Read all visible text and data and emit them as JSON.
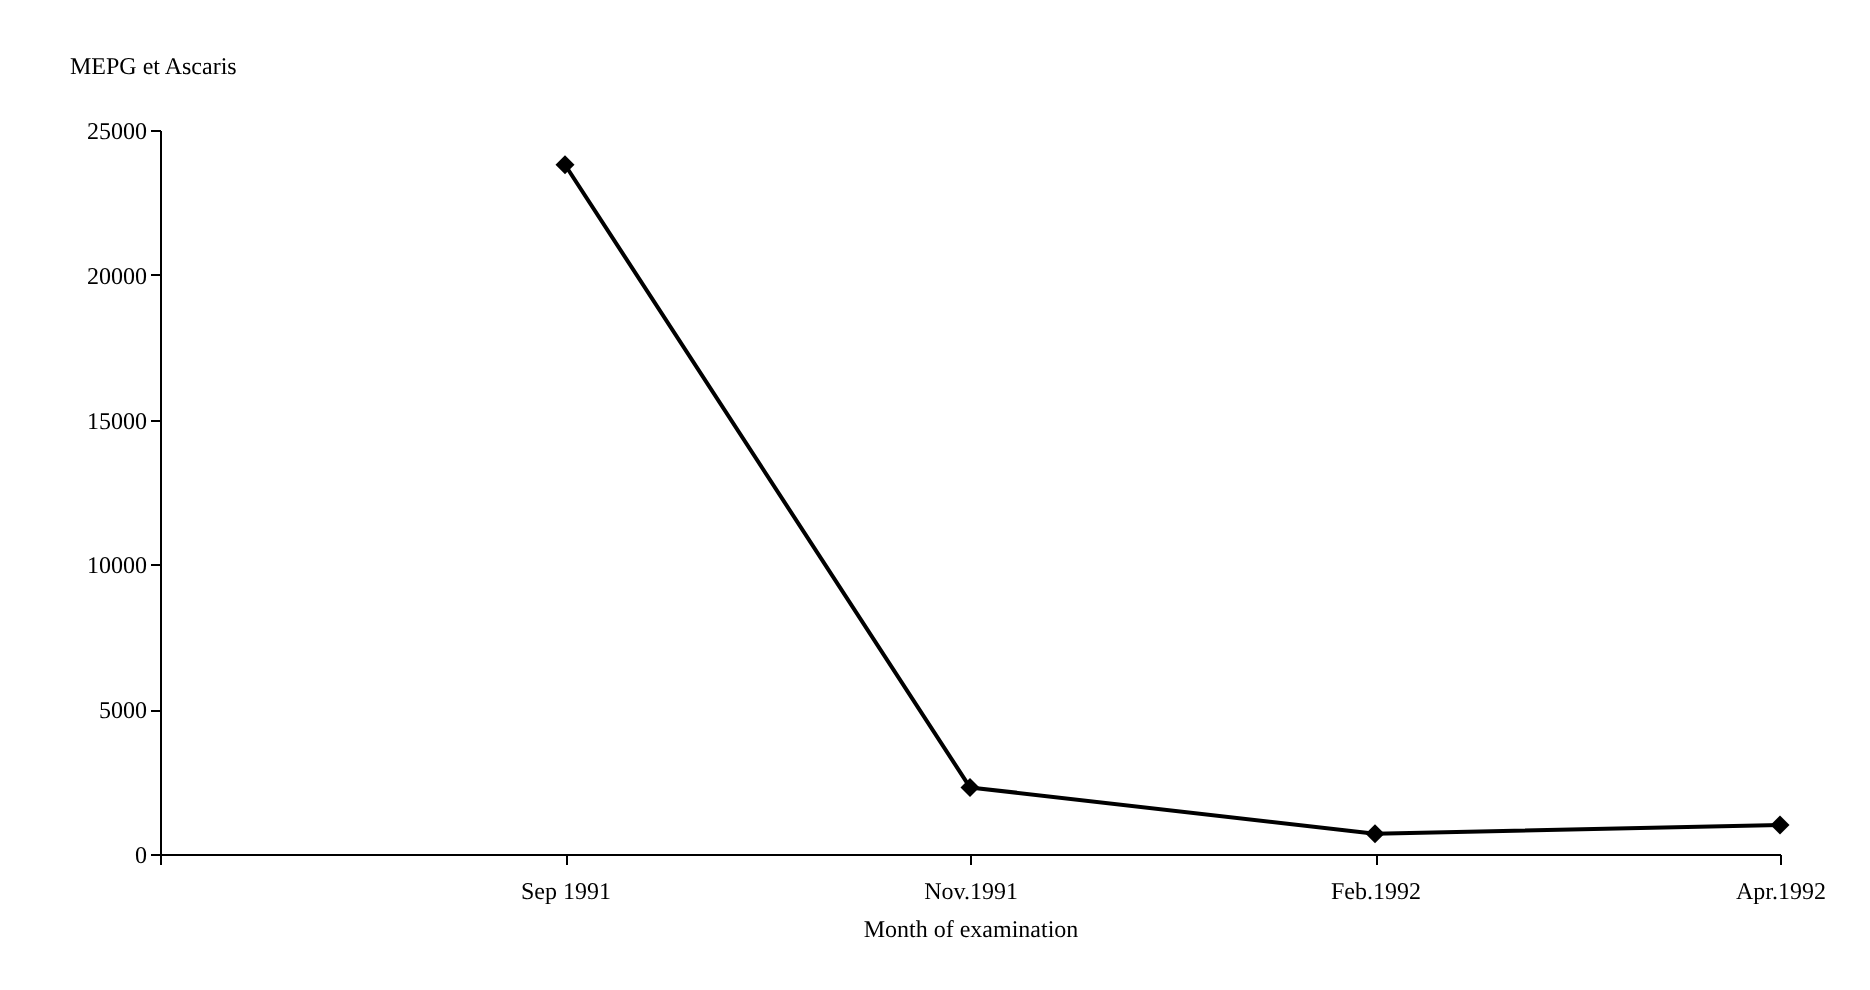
{
  "chart_data": {
    "type": "line",
    "ylabel": "MEPG et Ascaris",
    "xlabel": "Month of examination",
    "categories": [
      null,
      "Sep 1991",
      "Nov.1991",
      "Feb.1992",
      "Apr.1992"
    ],
    "series": [
      {
        "color": "#000000",
        "values": [
          null,
          23800,
          2300,
          700,
          1000
        ]
      }
    ],
    "ylim": [
      0,
      25000
    ],
    "yticks": [
      0,
      5000,
      10000,
      15000,
      20000,
      25000
    ],
    "grid": false,
    "legend": false,
    "marker": "diamond",
    "line_style": "solid"
  }
}
